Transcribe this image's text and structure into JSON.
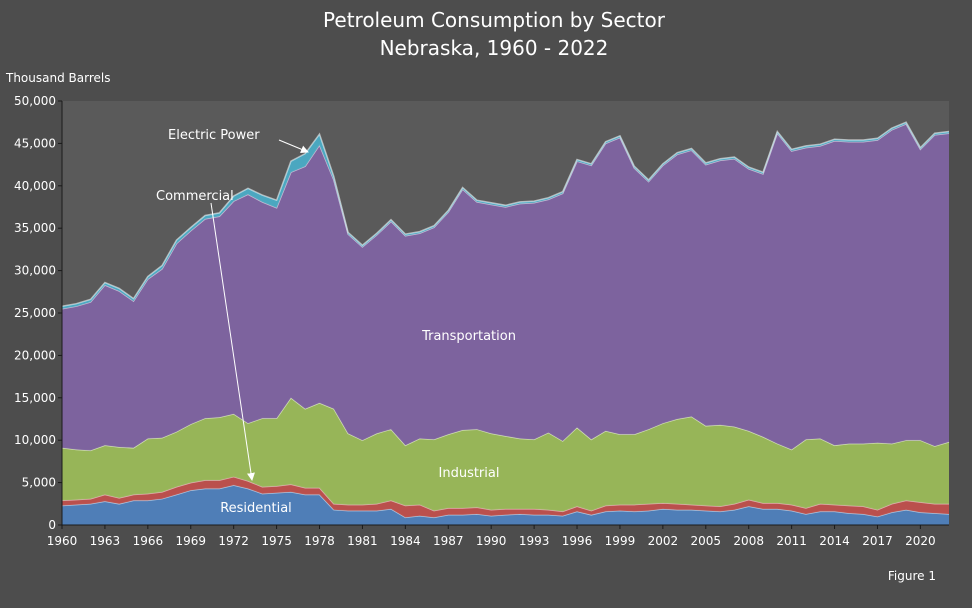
{
  "chart_data": {
    "type": "area",
    "stacked": true,
    "title": "Petroleum Consumption by Sector",
    "subtitle": "Nebraska, 1960 - 2022",
    "ylabel": "Thousand Barrels",
    "xlabel": "",
    "footer": "Figure 1",
    "ylim": [
      0,
      50000
    ],
    "yticks": [
      "0",
      "5,000",
      "10,000",
      "15,000",
      "20,000",
      "25,000",
      "30,000",
      "35,000",
      "40,000",
      "45,000",
      "50,000"
    ],
    "xticks": [
      "1960",
      "1963",
      "1966",
      "1969",
      "1972",
      "1975",
      "1978",
      "1981",
      "1984",
      "1987",
      "1990",
      "1993",
      "1996",
      "1999",
      "2002",
      "2005",
      "2008",
      "2011",
      "2014",
      "2017",
      "2020"
    ],
    "grid": false,
    "x": [
      1960,
      1961,
      1962,
      1963,
      1964,
      1965,
      1966,
      1967,
      1968,
      1969,
      1970,
      1971,
      1972,
      1973,
      1974,
      1975,
      1976,
      1977,
      1978,
      1979,
      1980,
      1981,
      1982,
      1983,
      1984,
      1985,
      1986,
      1987,
      1988,
      1989,
      1990,
      1991,
      1992,
      1993,
      1994,
      1995,
      1996,
      1997,
      1998,
      1999,
      2000,
      2001,
      2002,
      2003,
      2004,
      2005,
      2006,
      2007,
      2008,
      2009,
      2010,
      2011,
      2012,
      2013,
      2014,
      2015,
      2016,
      2017,
      2018,
      2019,
      2020,
      2021,
      2022
    ],
    "series": [
      {
        "name": "Residential",
        "color": "#4f81bd",
        "values": [
          2300,
          2400,
          2500,
          2800,
          2500,
          2900,
          2900,
          3100,
          3600,
          4100,
          4300,
          4300,
          4700,
          4300,
          3700,
          3800,
          3900,
          3600,
          3600,
          1800,
          1700,
          1700,
          1700,
          1900,
          900,
          1100,
          900,
          1200,
          1200,
          1300,
          1100,
          1200,
          1300,
          1200,
          1200,
          1100,
          1600,
          1200,
          1600,
          1700,
          1600,
          1700,
          1900,
          1800,
          1800,
          1700,
          1600,
          1800,
          2200,
          1900,
          1900,
          1700,
          1300,
          1600,
          1600,
          1400,
          1300,
          1000,
          1500,
          1800,
          1500,
          1400,
          1300
        ]
      },
      {
        "name": "Commercial",
        "color": "#c0504d",
        "values": [
          600,
          600,
          600,
          800,
          700,
          700,
          800,
          800,
          900,
          900,
          1000,
          1000,
          1000,
          900,
          800,
          800,
          900,
          800,
          800,
          700,
          700,
          700,
          800,
          1000,
          1400,
          1300,
          800,
          800,
          800,
          800,
          700,
          700,
          600,
          700,
          600,
          500,
          600,
          500,
          700,
          700,
          800,
          800,
          700,
          700,
          600,
          600,
          600,
          700,
          800,
          700,
          700,
          700,
          700,
          900,
          800,
          900,
          900,
          800,
          1000,
          1100,
          1200,
          1100,
          1200
        ]
      },
      {
        "name": "Industrial",
        "color": "#9bbb59",
        "values": [
          6200,
          5900,
          5700,
          5800,
          6000,
          5500,
          6500,
          6400,
          6500,
          6900,
          7300,
          7400,
          7400,
          6800,
          8100,
          8000,
          10200,
          9300,
          10000,
          11200,
          8400,
          7600,
          8300,
          8400,
          7100,
          7800,
          8400,
          8700,
          9200,
          9200,
          9000,
          8600,
          8300,
          8200,
          9100,
          8300,
          9300,
          8400,
          8800,
          8300,
          8300,
          8800,
          9400,
          10000,
          10400,
          9400,
          9600,
          9100,
          8100,
          7800,
          7000,
          6500,
          8100,
          7700,
          7000,
          7300,
          7400,
          7900,
          7100,
          7100,
          7300,
          6800,
          7300
        ]
      },
      {
        "name": "Transportation",
        "color": "#8064a2",
        "values": [
          16400,
          16900,
          17500,
          18900,
          18400,
          17300,
          18800,
          19900,
          22200,
          22800,
          23500,
          23700,
          25100,
          27000,
          25500,
          24800,
          26600,
          28600,
          30400,
          27000,
          23500,
          22800,
          23400,
          24500,
          24700,
          24200,
          25000,
          26200,
          28400,
          26800,
          27000,
          27000,
          27700,
          27900,
          27500,
          29200,
          31400,
          32300,
          33900,
          35000,
          31400,
          29200,
          30400,
          31200,
          31400,
          30800,
          31200,
          31600,
          30900,
          31000,
          36600,
          35200,
          34400,
          34500,
          35900,
          35600,
          35600,
          35700,
          37000,
          37300,
          34300,
          36700,
          36400
        ]
      },
      {
        "name": "Electric Power",
        "color": "#4bacc6",
        "values": [
          300,
          300,
          300,
          300,
          300,
          300,
          300,
          400,
          400,
          400,
          400,
          400,
          600,
          700,
          800,
          900,
          1300,
          1500,
          1300,
          400,
          200,
          200,
          200,
          200,
          200,
          200,
          200,
          200,
          200,
          200,
          200,
          200,
          200,
          200,
          200,
          200,
          200,
          200,
          200,
          200,
          200,
          200,
          200,
          200,
          200,
          200,
          200,
          200,
          200,
          200,
          200,
          200,
          200,
          200,
          200,
          200,
          200,
          200,
          200,
          200,
          200,
          200,
          200
        ]
      }
    ],
    "annotations": [
      {
        "text": "Electric Power",
        "points_to_year": 1977
      },
      {
        "text": "Commercial",
        "points_to_year": 1973
      },
      {
        "text": "Transportation"
      },
      {
        "text": "Industrial"
      },
      {
        "text": "Residential"
      }
    ]
  }
}
